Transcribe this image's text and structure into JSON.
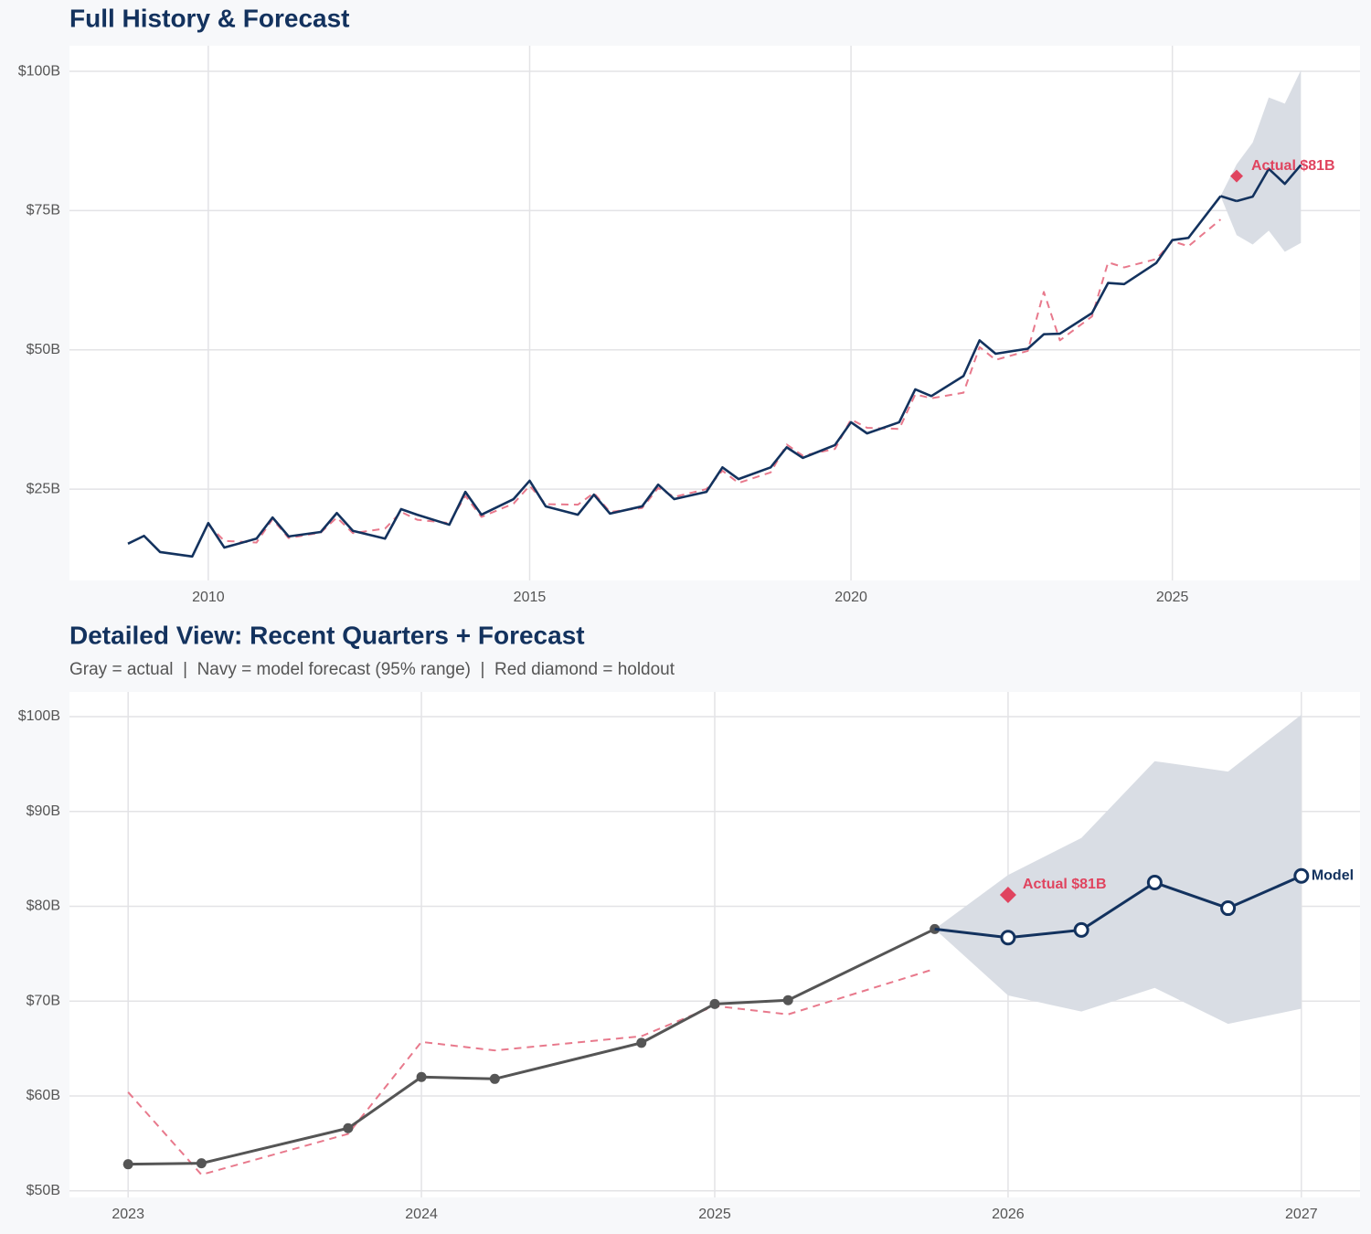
{
  "chart_data": [
    {
      "type": "line",
      "title": "Full History & Forecast",
      "xlim": [
        2007.84,
        2027.92
      ],
      "xticks": [
        2010,
        2015,
        2020,
        2025
      ],
      "ylim": [
        8.6,
        104.6
      ],
      "yticks": [
        {
          "value": 25,
          "label": "$25B"
        },
        {
          "value": 50,
          "label": "$50B"
        },
        {
          "value": 75,
          "label": "$75B"
        },
        {
          "value": 100,
          "label": "$100B"
        }
      ],
      "grid": true,
      "band": {
        "color": "#d9dde4",
        "x": [
          2025.75,
          2026,
          2026.25,
          2026.5,
          2026.75,
          2027
        ],
        "upper": [
          77.6,
          83.3,
          87.2,
          95.3,
          94.2,
          100.2
        ],
        "lower": [
          77.6,
          70.6,
          68.9,
          71.4,
          67.6,
          69.2
        ]
      },
      "series": [
        {
          "color": "#e8798c",
          "dash": true,
          "x": [
            2010,
            2010.25,
            2010.75,
            2011,
            2011.25,
            2011.75,
            2012,
            2012.25,
            2012.75,
            2013,
            2013.25,
            2013.75,
            2014,
            2014.25,
            2014.75,
            2015,
            2015.25,
            2015.75,
            2016,
            2016.25,
            2016.75,
            2017,
            2017.25,
            2017.75,
            2018,
            2018.25,
            2018.75,
            2019,
            2019.25,
            2019.75,
            2020,
            2020.25,
            2020.75,
            2021,
            2021.25,
            2021.75,
            2022,
            2022.25,
            2022.75,
            2023,
            2023.25,
            2023.75,
            2024,
            2024.25,
            2024.75,
            2025,
            2025.25,
            2025.75
          ],
          "values": [
            18.6,
            15.7,
            15.4,
            19.6,
            16.2,
            17.2,
            19.9,
            17.1,
            17.9,
            20.9,
            19.5,
            18.9,
            23.8,
            20.0,
            22.4,
            25.6,
            22.3,
            22.2,
            24.3,
            20.9,
            21.6,
            25.2,
            23.6,
            25.0,
            28.3,
            26.1,
            28.0,
            33.0,
            31.0,
            32.2,
            37.5,
            36.0,
            35.8,
            42.0,
            41.3,
            42.3,
            50.5,
            48.2,
            49.8,
            60.4,
            51.7,
            56.0,
            65.7,
            64.8,
            66.3,
            69.5,
            68.6,
            73.4
          ]
        },
        {
          "color": "#13325e",
          "x": [
            2008.75,
            2009,
            2009.25,
            2009.75,
            2010,
            2010.25,
            2010.75,
            2011,
            2011.25,
            2011.75,
            2012,
            2012.25,
            2012.75,
            2013,
            2013.25,
            2013.75,
            2014,
            2014.25,
            2014.75,
            2015,
            2015.25,
            2015.75,
            2016,
            2016.25,
            2016.75,
            2017,
            2017.25,
            2017.75,
            2018,
            2018.25,
            2018.75,
            2019,
            2019.25,
            2019.75,
            2020,
            2020.25,
            2020.75,
            2021,
            2021.25,
            2021.75,
            2022,
            2022.25,
            2022.75,
            2023,
            2023.25,
            2023.75,
            2024,
            2024.25,
            2024.75,
            2025,
            2025.25,
            2025.75
          ],
          "values": [
            15.2,
            16.6,
            13.7,
            12.9,
            18.9,
            14.5,
            16.1,
            19.9,
            16.5,
            17.3,
            20.7,
            17.5,
            16.1,
            21.4,
            20.4,
            18.6,
            24.5,
            20.4,
            23.2,
            26.5,
            21.9,
            20.4,
            24.0,
            20.6,
            21.9,
            25.8,
            23.2,
            24.5,
            28.9,
            26.8,
            28.9,
            32.5,
            30.6,
            32.9,
            37.0,
            35.0,
            37.0,
            42.9,
            41.7,
            45.3,
            51.7,
            49.3,
            50.2,
            52.8,
            52.9,
            56.6,
            62.0,
            61.8,
            65.6,
            69.7,
            70.1,
            77.6
          ]
        },
        {
          "color": "#13325e",
          "joins_previous": true,
          "x": [
            2026,
            2026.25,
            2026.5,
            2026.75,
            2027
          ],
          "values": [
            76.7,
            77.5,
            82.5,
            79.8,
            83.2
          ]
        }
      ],
      "annotation": {
        "x": 2026,
        "value": 81.2,
        "label": "Actual $81B",
        "color": "#e0445f"
      }
    },
    {
      "type": "line",
      "title": "Detailed View: Recent Quarters + Forecast",
      "subtitle": "Gray = actual  |  Navy = model forecast (95% range)  |  Red diamond = holdout",
      "xlim": [
        2022.8,
        2027.2
      ],
      "xticks": [
        2023,
        2024,
        2025,
        2026,
        2027
      ],
      "ylim": [
        49.3,
        102.6
      ],
      "yticks": [
        {
          "value": 50,
          "label": "$50B"
        },
        {
          "value": 60,
          "label": "$60B"
        },
        {
          "value": 70,
          "label": "$70B"
        },
        {
          "value": 80,
          "label": "$80B"
        },
        {
          "value": 90,
          "label": "$90B"
        },
        {
          "value": 100,
          "label": "$100B"
        }
      ],
      "grid": true,
      "band": {
        "color": "#d9dde4",
        "x": [
          2025.75,
          2026,
          2026.25,
          2026.5,
          2026.75,
          2027
        ],
        "upper": [
          77.6,
          83.3,
          87.2,
          95.3,
          94.2,
          100.2
        ],
        "lower": [
          77.6,
          70.6,
          68.9,
          71.4,
          67.6,
          69.2
        ]
      },
      "series": [
        {
          "color": "#e8798c",
          "dash": true,
          "x": [
            2023,
            2023.25,
            2023.75,
            2024,
            2024.25,
            2024.75,
            2025,
            2025.25,
            2025.75
          ],
          "values": [
            60.4,
            51.7,
            56.0,
            65.7,
            64.8,
            66.3,
            69.5,
            68.6,
            73.4
          ]
        },
        {
          "color": "#555555",
          "marker": "filled",
          "x": [
            2023,
            2023.25,
            2023.75,
            2024,
            2024.25,
            2024.75,
            2025,
            2025.25,
            2025.75
          ],
          "values": [
            52.8,
            52.9,
            56.6,
            62.0,
            61.8,
            65.6,
            69.7,
            70.1,
            77.6
          ]
        },
        {
          "color": "#13325e",
          "marker": "open",
          "joins_previous": true,
          "label": "Model",
          "x": [
            2026,
            2026.25,
            2026.5,
            2026.75,
            2027
          ],
          "values": [
            76.7,
            77.5,
            82.5,
            79.8,
            83.2
          ]
        }
      ],
      "annotation": {
        "x": 2026,
        "value": 81.2,
        "label": "Actual $81B",
        "color": "#e0445f"
      }
    }
  ]
}
